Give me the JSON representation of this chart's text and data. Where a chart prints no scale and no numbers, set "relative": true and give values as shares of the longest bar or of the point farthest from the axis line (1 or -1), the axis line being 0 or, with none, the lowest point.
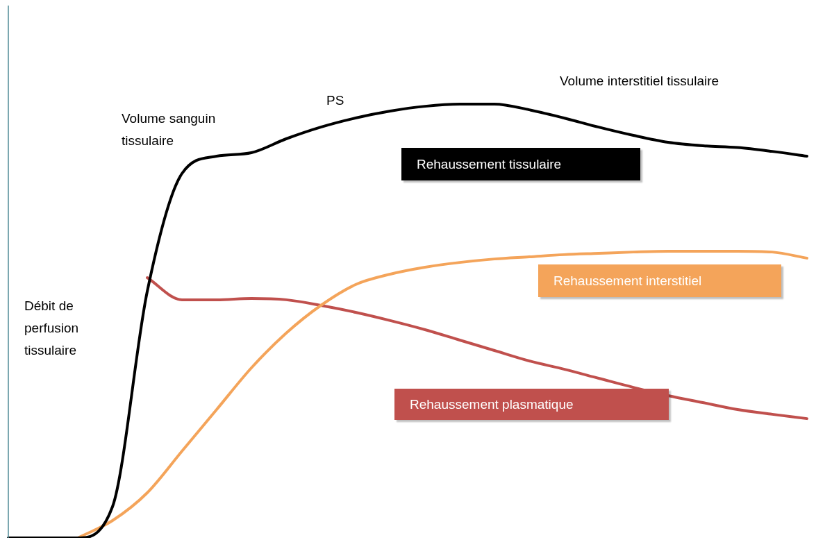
{
  "chart_data": {
    "type": "line",
    "relative": true,
    "legend": false,
    "marker": "none",
    "line_style": "solid",
    "categories": [
      null,
      null,
      null,
      null,
      null,
      null,
      null,
      null,
      null,
      null,
      null,
      null,
      null,
      null,
      null,
      null,
      null,
      null,
      null,
      null,
      null,
      null,
      null,
      null
    ],
    "series": [
      {
        "name": "Rehaussement tissulaire",
        "color": "#000000",
        "values": [
          0,
          0,
          0,
          0.072,
          0.568,
          0.84,
          0.88,
          0.888,
          0.92,
          0.947,
          0.968,
          0.984,
          0.995,
          1,
          1,
          0.987,
          0.968,
          0.947,
          0.928,
          0.912,
          0.904,
          0.9,
          0.891,
          0.88
        ]
      },
      {
        "name": "Rehaussement interstitiel",
        "color": "#f4a45a",
        "values": [
          null,
          null,
          0,
          0.04,
          0.104,
          0.2,
          0.296,
          0.392,
          0.472,
          0.536,
          0.584,
          0.608,
          0.624,
          0.635,
          0.643,
          0.648,
          0.653,
          0.656,
          0.659,
          0.661,
          0.661,
          0.661,
          0.659,
          0.645
        ]
      },
      {
        "name": "Rehaussement plasmatique",
        "color": "#c0504d",
        "values": [
          null,
          null,
          null,
          null,
          0.6,
          0.549,
          0.549,
          0.552,
          0.549,
          0.536,
          0.52,
          0.501,
          0.48,
          0.456,
          0.432,
          0.408,
          0.389,
          0.368,
          0.347,
          0.328,
          0.312,
          0.296,
          0.285,
          0.275
        ]
      }
    ],
    "annotations": [
      "Volume sanguin tissulaire",
      "PS",
      "Volume interstitiel tissulaire",
      "Débit de perfusion tissulaire"
    ]
  }
}
